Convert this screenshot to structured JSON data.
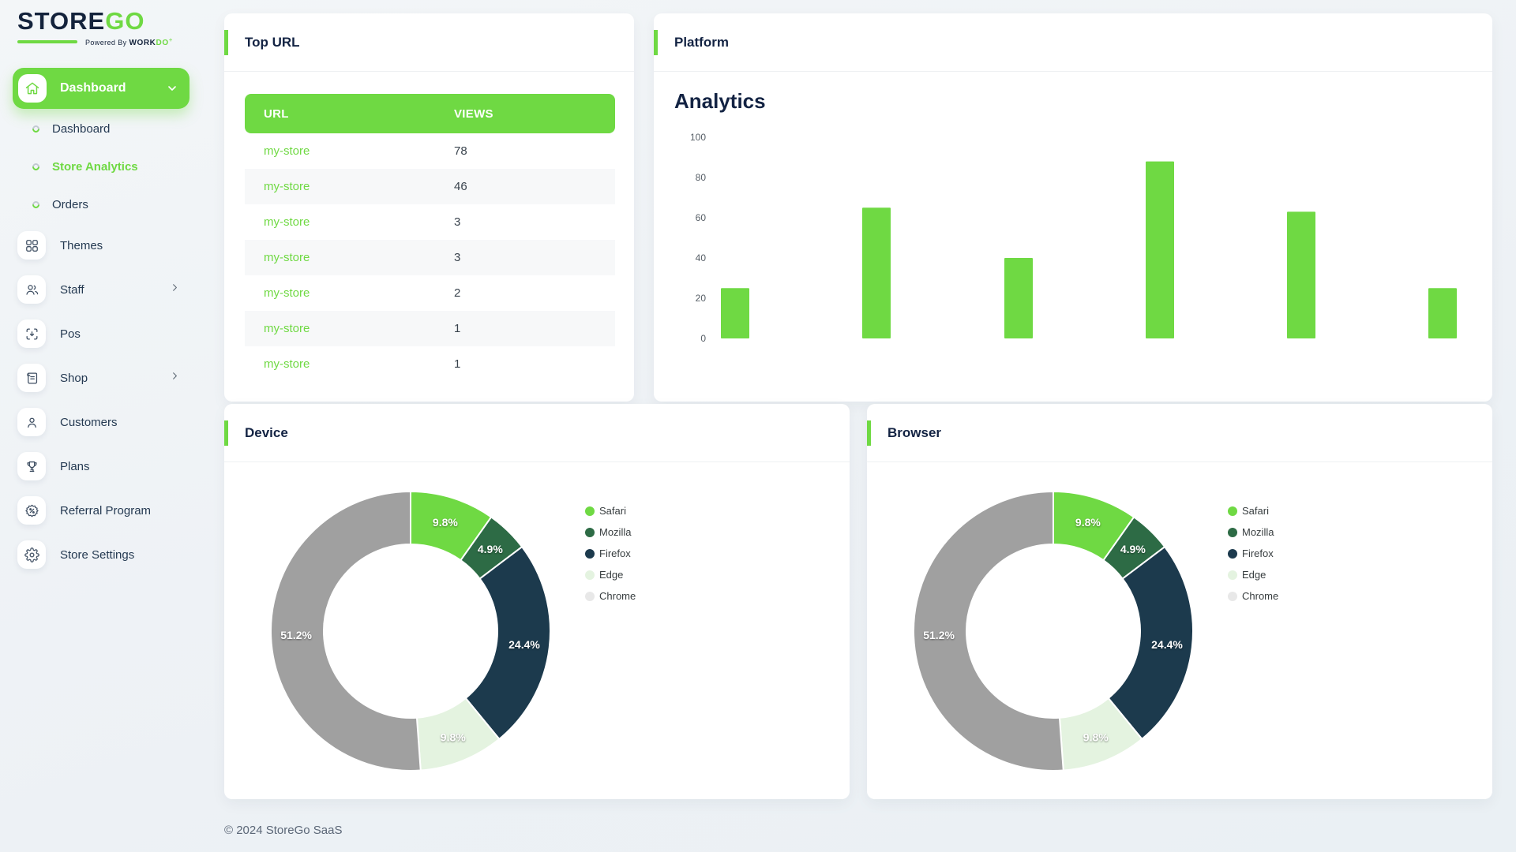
{
  "logo": {
    "primary": "STORE",
    "accent": "GO",
    "powered_by": "Powered By ",
    "brand": "WORK",
    "brand_accent": "DO",
    "brand_mark": "+"
  },
  "colors": {
    "accent_green": "#6fd943",
    "dark_navy": "#132343",
    "sidebar_text": "#253a52",
    "page_bg": "#eff3f6",
    "stripe": "#f7f8f9"
  },
  "sidebar": {
    "active_label": "Dashboard",
    "sub_items": [
      {
        "label": "Dashboard",
        "active": false
      },
      {
        "label": "Store Analytics",
        "active": true
      },
      {
        "label": "Orders",
        "active": false
      }
    ],
    "items": [
      {
        "label": "Themes",
        "icon": "grid-icon",
        "has_submenu": false
      },
      {
        "label": "Staff",
        "icon": "users-icon",
        "has_submenu": true
      },
      {
        "label": "Pos",
        "icon": "pos-icon",
        "has_submenu": false
      },
      {
        "label": "Shop",
        "icon": "shop-icon",
        "has_submenu": true
      },
      {
        "label": "Customers",
        "icon": "customer-icon",
        "has_submenu": false
      },
      {
        "label": "Plans",
        "icon": "trophy-icon",
        "has_submenu": false
      },
      {
        "label": "Referral Program",
        "icon": "referral-icon",
        "has_submenu": false
      },
      {
        "label": "Store Settings",
        "icon": "settings-icon",
        "has_submenu": false
      }
    ]
  },
  "top_url": {
    "title": "Top URL",
    "columns": [
      "URL",
      "VIEWS"
    ],
    "rows": [
      {
        "url": "my-store",
        "views": "78"
      },
      {
        "url": "my-store",
        "views": "46"
      },
      {
        "url": "my-store",
        "views": "3"
      },
      {
        "url": "my-store",
        "views": "3"
      },
      {
        "url": "my-store",
        "views": "2"
      },
      {
        "url": "my-store",
        "views": "1"
      },
      {
        "url": "my-store",
        "views": "1"
      }
    ]
  },
  "platform": {
    "title": "Platform"
  },
  "device": {
    "title": "Device"
  },
  "browser": {
    "title": "Browser"
  },
  "footer": {
    "copyright": "© 2024 StoreGo SaaS"
  },
  "chart_data": [
    {
      "id": "platform_analytics",
      "type": "bar",
      "title": "Analytics",
      "categories": [
        "",
        "",
        "",
        "",
        "",
        ""
      ],
      "values": [
        25,
        65,
        40,
        88,
        63,
        25
      ],
      "xlabel": "",
      "ylabel": "",
      "ylim": [
        0,
        100
      ],
      "yticks": [
        0,
        20,
        40,
        60,
        80,
        100
      ],
      "grid": false,
      "bar_color": "#6fd943",
      "legend_position": "none"
    },
    {
      "id": "device_donut",
      "type": "pie",
      "donut": true,
      "title": "Device",
      "labels": [
        "Safari",
        "Mozilla",
        "Firefox",
        "Edge",
        "Chrome"
      ],
      "values": [
        9.8,
        4.9,
        24.4,
        9.8,
        51.2
      ],
      "display_labels": [
        "9.8%",
        "4.9%",
        "24.4%",
        "9.8%",
        "51.2%"
      ],
      "colors": [
        "#6fd943",
        "#2d6b45",
        "#1c3a4d",
        "#e4f3e0",
        "#a0a0a0"
      ],
      "legend_colors": [
        "#6fd943",
        "#2d6b45",
        "#1c3a4d",
        "#e4f3e0",
        "#e8e8e8"
      ],
      "legend_position": "right"
    },
    {
      "id": "browser_donut",
      "type": "pie",
      "donut": true,
      "title": "Browser",
      "labels": [
        "Safari",
        "Mozilla",
        "Firefox",
        "Edge",
        "Chrome"
      ],
      "values": [
        9.8,
        4.9,
        24.4,
        9.8,
        51.2
      ],
      "display_labels": [
        "9.8%",
        "4.9%",
        "24.4%",
        "9.8%",
        "51.2%"
      ],
      "colors": [
        "#6fd943",
        "#2d6b45",
        "#1c3a4d",
        "#e4f3e0",
        "#a0a0a0"
      ],
      "legend_colors": [
        "#6fd943",
        "#2d6b45",
        "#1c3a4d",
        "#e4f3e0",
        "#e8e8e8"
      ],
      "legend_position": "right"
    }
  ]
}
